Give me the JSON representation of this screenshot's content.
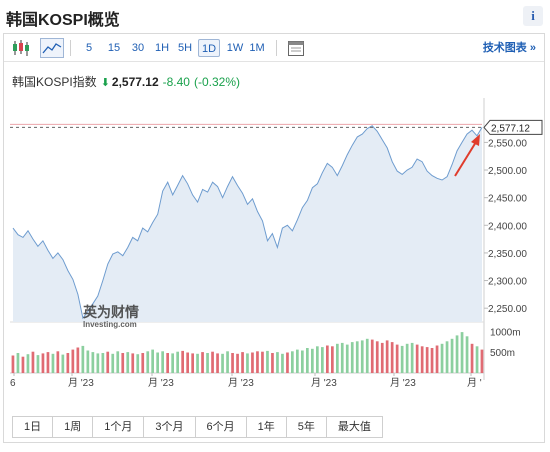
{
  "header": {
    "title": "韩国KOSPI概览",
    "info_label": "i"
  },
  "toolbar": {
    "intervals": [
      "5",
      "15",
      "30",
      "1H",
      "5H",
      "1D",
      "1W",
      "1M"
    ],
    "active_interval": "1D",
    "tech_chart_label": "技术图表 »"
  },
  "quote": {
    "name": "韩国KOSPI指数",
    "last": "2,577.12",
    "change": "-8.40",
    "change_pct": "(-0.32%)",
    "down_color": "#1aa14c"
  },
  "watermark": {
    "line1": "英为财情",
    "line2": "Investing.com"
  },
  "chart_data": {
    "type": "area",
    "y_ticks": [
      "2,550.00",
      "2,500.00",
      "2,450.00",
      "2,400.00",
      "2,350.00",
      "2,300.00",
      "2,250.00"
    ],
    "y_tick_values": [
      2550,
      2500,
      2450,
      2400,
      2350,
      2300,
      2250
    ],
    "ylim": [
      2225,
      2605
    ],
    "last_label": "2,577.12",
    "last_value": 2577.12,
    "x_labels": [
      "6",
      "月 '23",
      "月 '23",
      "月 '23",
      "月 '23",
      "月 '23",
      "月 '"
    ],
    "volume_ticks": [
      "1000m",
      "500m"
    ],
    "volume_tick_values": [
      1000,
      500
    ],
    "volume_max": 1150,
    "colors": {
      "line": "#6e9ccf",
      "fill": "#e4ecf5",
      "up": "#8ccf9f",
      "down": "#e06b73",
      "arrow": "#e03c2c"
    },
    "values": [
      2395,
      2383,
      2378,
      2390,
      2375,
      2362,
      2372,
      2355,
      2340,
      2350,
      2338,
      2318,
      2302,
      2275,
      2232,
      2244,
      2258,
      2272,
      2300,
      2330,
      2348,
      2352,
      2345,
      2360,
      2378,
      2372,
      2395,
      2388,
      2405,
      2420,
      2462,
      2478,
      2455,
      2472,
      2490,
      2475,
      2455,
      2442,
      2465,
      2460,
      2478,
      2470,
      2450,
      2470,
      2488,
      2472,
      2458,
      2438,
      2448,
      2425,
      2408,
      2372,
      2385,
      2360,
      2395,
      2400,
      2390,
      2410,
      2432,
      2445,
      2468,
      2475,
      2495,
      2512,
      2505,
      2490,
      2508,
      2528,
      2545,
      2560,
      2565,
      2575,
      2580,
      2570,
      2555,
      2540,
      2515,
      2498,
      2492,
      2500,
      2505,
      2520,
      2515,
      2498,
      2490,
      2485,
      2482,
      2488,
      2510,
      2535,
      2550,
      2565,
      2572,
      2562,
      2577.12
    ],
    "volumes": [
      420,
      480,
      390,
      450,
      510,
      430,
      470,
      500,
      460,
      520,
      440,
      480,
      560,
      610,
      650,
      540,
      500,
      470,
      480,
      510,
      460,
      520,
      480,
      500,
      470,
      450,
      480,
      520,
      560,
      490,
      520,
      480,
      470,
      510,
      530,
      490,
      470,
      460,
      500,
      480,
      510,
      470,
      460,
      520,
      480,
      460,
      500,
      470,
      490,
      520,
      510,
      530,
      480,
      500,
      460,
      490,
      520,
      560,
      540,
      600,
      580,
      640,
      620,
      660,
      640,
      700,
      720,
      680,
      740,
      760,
      780,
      820,
      800,
      760,
      720,
      780,
      740,
      680,
      650,
      700,
      720,
      680,
      640,
      620,
      600,
      660,
      700,
      760,
      820,
      900,
      980,
      880,
      700,
      640,
      560
    ],
    "vol_dir": [
      "d",
      "u",
      "d",
      "u",
      "d",
      "u",
      "d",
      "d",
      "u",
      "d",
      "u",
      "d",
      "d",
      "d",
      "u",
      "u",
      "u",
      "u",
      "u",
      "d",
      "u",
      "u",
      "d",
      "u",
      "d",
      "u",
      "d",
      "u",
      "u",
      "u",
      "u",
      "d",
      "u",
      "u",
      "d",
      "d",
      "d",
      "u",
      "d",
      "u",
      "d",
      "d",
      "u",
      "u",
      "d",
      "d",
      "d",
      "u",
      "d",
      "d",
      "d",
      "u",
      "d",
      "u",
      "u",
      "d",
      "u",
      "u",
      "u",
      "u",
      "u",
      "u",
      "u",
      "d",
      "d",
      "u",
      "u",
      "u",
      "u",
      "u",
      "u",
      "u",
      "d",
      "d",
      "d",
      "d",
      "d",
      "d",
      "u",
      "u",
      "u",
      "d",
      "d",
      "d",
      "d",
      "d",
      "u",
      "u",
      "u",
      "u",
      "u",
      "u",
      "d",
      "u",
      "d"
    ]
  },
  "ranges": [
    "1日",
    "1周",
    "1个月",
    "3个月",
    "6个月",
    "1年",
    "5年",
    "最大值"
  ]
}
